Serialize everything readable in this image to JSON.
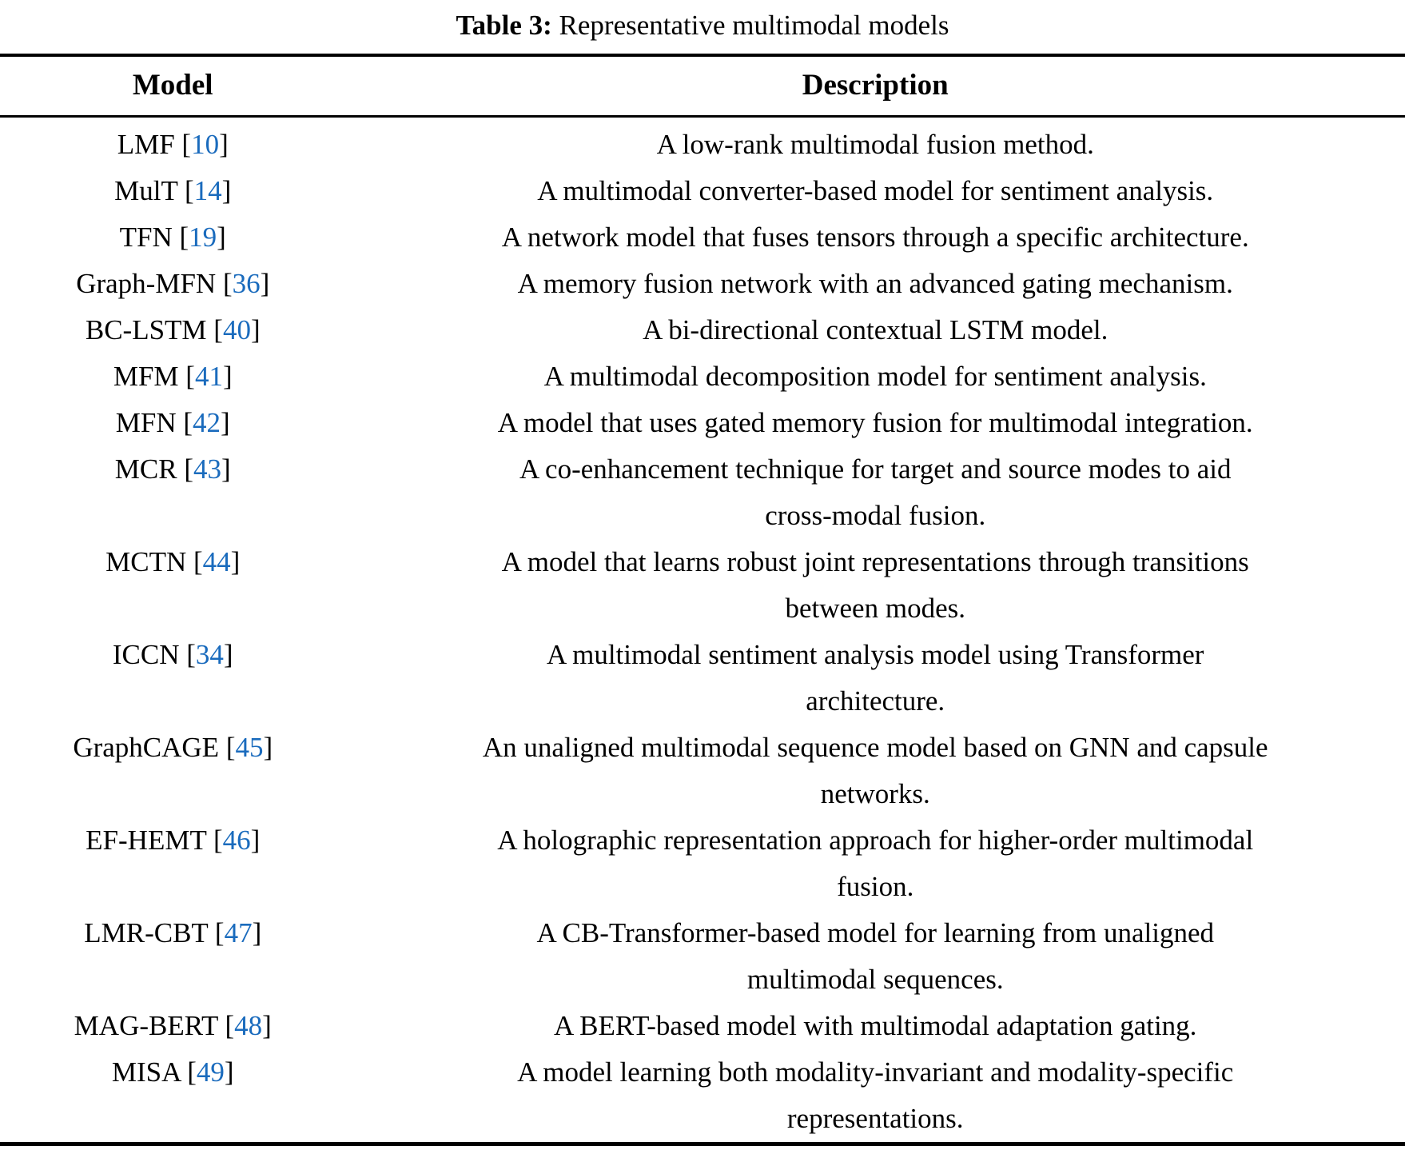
{
  "caption": {
    "label": "Table 3:",
    "rest": "Representative multimodal models"
  },
  "colors": {
    "citation_link": "#1a6bbd",
    "text": "#000000",
    "background": "#ffffff",
    "rule": "#000000"
  },
  "table": {
    "headers": [
      "Model",
      "Description"
    ],
    "rows": [
      {
        "model": "LMF",
        "ref": "10",
        "description": "A low-rank multimodal fusion method."
      },
      {
        "model": "MulT",
        "ref": "14",
        "description": "A multimodal converter-based model for sentiment analysis."
      },
      {
        "model": "TFN",
        "ref": "19",
        "description": "A network model that fuses tensors through a specific architecture."
      },
      {
        "model": "Graph-MFN",
        "ref": "36",
        "description": "A memory fusion network with an advanced gating mechanism."
      },
      {
        "model": "BC-LSTM",
        "ref": "40",
        "description": "A bi-directional contextual LSTM model."
      },
      {
        "model": "MFM",
        "ref": "41",
        "description": "A multimodal decomposition model for sentiment analysis."
      },
      {
        "model": "MFN",
        "ref": "42",
        "description": "A model that uses gated memory fusion for multimodal integration."
      },
      {
        "model": "MCR",
        "ref": "43",
        "description": "A co-enhancement technique for target and source modes to aid\ncross-modal fusion."
      },
      {
        "model": "MCTN",
        "ref": "44",
        "description": "A model that learns robust joint representations through transitions\nbetween modes."
      },
      {
        "model": "ICCN",
        "ref": "34",
        "description": "A multimodal sentiment analysis model using Transformer\narchitecture."
      },
      {
        "model": "GraphCAGE",
        "ref": "45",
        "description": "An unaligned multimodal sequence model based on GNN and capsule\nnetworks."
      },
      {
        "model": "EF-HEMT",
        "ref": "46",
        "description": "A holographic representation approach for higher-order multimodal\nfusion."
      },
      {
        "model": "LMR-CBT",
        "ref": "47",
        "description": "A CB-Transformer-based model for learning from unaligned\nmultimodal sequences."
      },
      {
        "model": "MAG-BERT",
        "ref": "48",
        "description": "A BERT-based model with multimodal adaptation gating."
      },
      {
        "model": "MISA",
        "ref": "49",
        "description": "A model learning both modality-invariant and modality-specific\nrepresentations."
      }
    ]
  }
}
